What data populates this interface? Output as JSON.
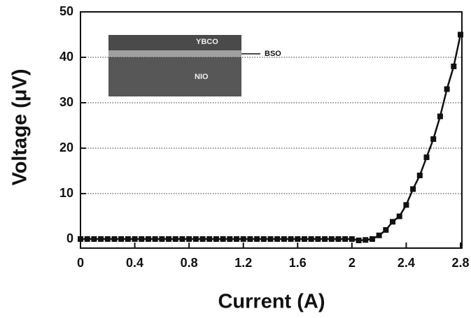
{
  "chart_data": {
    "type": "line",
    "xlabel": "Current (A)",
    "ylabel": "Voltage (μV)",
    "annotations": [
      "YBCO",
      "BSO",
      "NIO"
    ],
    "x": [
      0,
      0.05,
      0.1,
      0.15,
      0.2,
      0.25,
      0.3,
      0.35,
      0.4,
      0.45,
      0.5,
      0.55,
      0.6,
      0.65,
      0.7,
      0.75,
      0.8,
      0.85,
      0.9,
      0.95,
      1,
      1.05,
      1.1,
      1.15,
      1.2,
      1.25,
      1.3,
      1.35,
      1.4,
      1.45,
      1.5,
      1.55,
      1.6,
      1.65,
      1.7,
      1.75,
      1.8,
      1.85,
      1.9,
      1.95,
      2,
      2.05,
      2.1,
      2.15,
      2.2,
      2.25,
      2.3,
      2.35,
      2.4,
      2.45,
      2.5,
      2.55,
      2.6,
      2.65,
      2.7,
      2.75,
      2.8
    ],
    "values": [
      0,
      0,
      0,
      0,
      0,
      0,
      0,
      0,
      0,
      0,
      0,
      0,
      0,
      0,
      0,
      0,
      0,
      0,
      0,
      0,
      0,
      0,
      0,
      0,
      0,
      0,
      0,
      0,
      0,
      0,
      0,
      0,
      0,
      0,
      0,
      0,
      0,
      0,
      0,
      0,
      0,
      -0.3,
      -0.2,
      0,
      0.8,
      2,
      3.8,
      5,
      7.5,
      11,
      14,
      18,
      22,
      27,
      33,
      38,
      45
    ],
    "color": "#111111",
    "xlim": [
      0,
      2.8
    ],
    "ylim": [
      -2,
      50
    ],
    "xticks": [
      0,
      0.4,
      0.8,
      1.2,
      1.6,
      2,
      2.4,
      2.8
    ],
    "yticks": [
      0,
      10,
      20,
      30,
      40,
      50
    ],
    "grid": true
  }
}
